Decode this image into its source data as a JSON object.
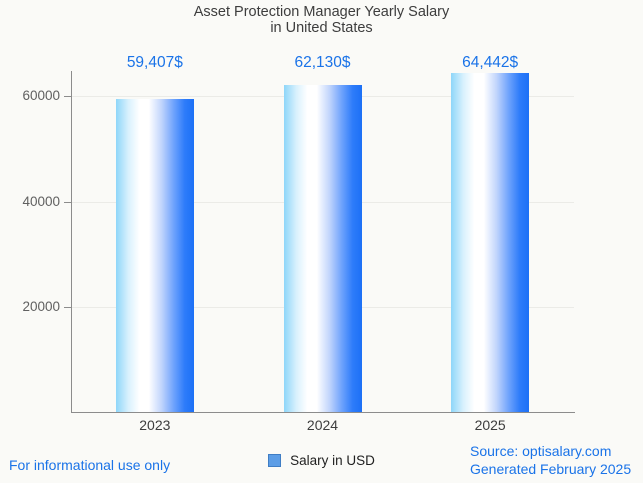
{
  "title": {
    "line1": "Asset Protection Manager Yearly Salary",
    "line2": "in United States"
  },
  "chart_data": {
    "type": "bar",
    "title": "Asset Protection Manager Yearly Salary in United States",
    "categories": [
      "2023",
      "2024",
      "2025"
    ],
    "series": [
      {
        "name": "Salary in USD",
        "values": [
          59407,
          62130,
          64442
        ]
      }
    ],
    "value_labels": [
      "59,407$",
      "62,130$",
      "64,442$"
    ],
    "xlabel": "",
    "ylabel": "",
    "ylim": [
      0,
      64800
    ],
    "yticks": [
      {
        "value": 20000,
        "label": "20000"
      },
      {
        "value": 40000,
        "label": "40000"
      },
      {
        "value": 60000,
        "label": "60000"
      }
    ],
    "grid": true,
    "legend_position": "bottom"
  },
  "legend": {
    "label": "Salary in USD"
  },
  "footer": {
    "left": "For informational use only",
    "source": "Source: optisalary.com",
    "generated": "Generated February 2025"
  },
  "colors": {
    "background": "#fafaf7",
    "accent_blue": "#1a73e8",
    "title_text": "#3d3d3d",
    "axis_line": "#8c8c8c",
    "gridline": "#ebebe7",
    "bar_gradient_left": "#8ed6f9",
    "bar_gradient_mid": "#ffffff",
    "bar_gradient_right": "#1c70f6",
    "legend_fill": "#5c9de6",
    "legend_border": "#3f7dc4"
  }
}
